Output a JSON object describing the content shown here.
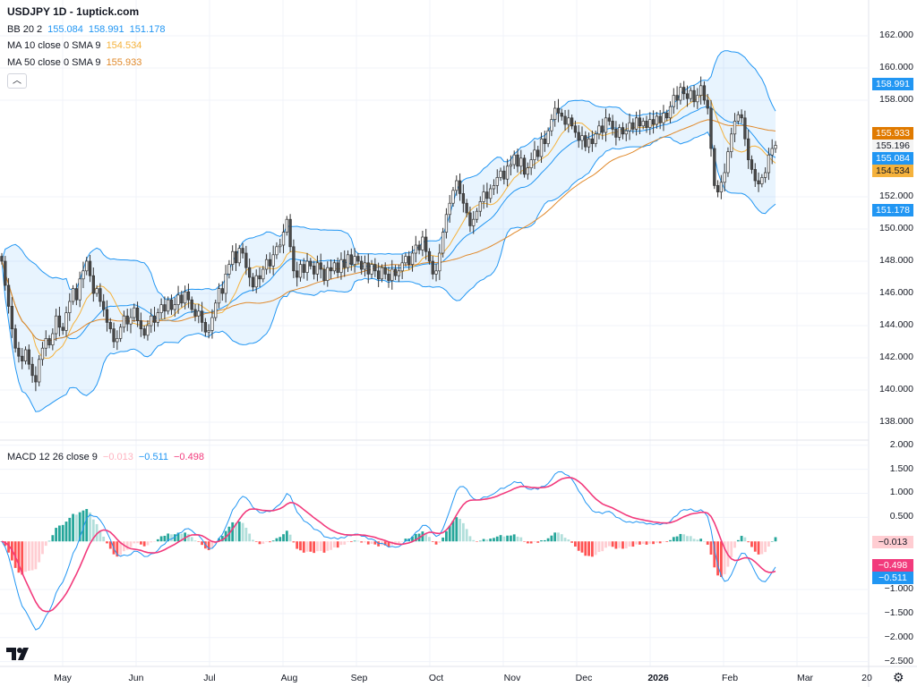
{
  "title": "USDJPY 1D - 1uptick.com",
  "legend": {
    "bb": {
      "label": "BB 20 2",
      "values": [
        "155.084",
        "158.991",
        "151.178"
      ]
    },
    "ma10": {
      "label": "MA 10 close 0 SMA 9",
      "value": "154.534"
    },
    "ma50": {
      "label": "MA 50 close 0 SMA 9",
      "value": "155.933"
    },
    "macd": {
      "label": "MACD 12 26 close 9",
      "values": [
        "−0.013",
        "−0.511",
        "−0.498"
      ]
    },
    "collapse_icon": "chevron-up-icon"
  },
  "colors": {
    "bb": "#2196f3",
    "bb_fill": "rgba(33,150,243,0.10)",
    "ma10": "#f5b23c",
    "ma50": "#e0892b",
    "macd": "#2196f3",
    "signal": "#f23a7c",
    "hist_up": "#26a69a",
    "hist_up_light": "#b2dfdb",
    "hist_dn": "#ff5252",
    "hist_dn_light": "#ffcdd2",
    "candle_down": "#4a4a4a",
    "candle_up": "#ffffff"
  },
  "chart_data": [
    {
      "type": "candlestick",
      "symbol": "USDJPY",
      "interval": "1D",
      "closes": [
        148.0,
        146.5,
        145.2,
        143.8,
        142.6,
        142.1,
        141.8,
        142.5,
        141.6,
        140.9,
        140.5,
        141.9,
        142.6,
        143.2,
        142.8,
        143.5,
        144.6,
        143.9,
        143.7,
        144.8,
        145.5,
        146.3,
        145.6,
        146.9,
        147.4,
        148.0,
        147.1,
        146.0,
        146.3,
        145.5,
        145.0,
        144.2,
        143.8,
        143.0,
        143.2,
        143.9,
        144.6,
        144.1,
        144.5,
        145.1,
        144.3,
        143.8,
        143.4,
        144.0,
        144.6,
        144.2,
        144.8,
        145.3,
        144.9,
        145.6,
        145.0,
        145.3,
        145.9,
        145.4,
        146.1,
        145.6,
        145.0,
        144.6,
        144.9,
        144.2,
        143.6,
        143.7,
        144.5,
        145.4,
        146.3,
        146.0,
        147.2,
        147.8,
        148.6,
        147.9,
        148.8,
        148.5,
        147.6,
        147.0,
        146.4,
        147.1,
        146.9,
        147.5,
        148.1,
        147.7,
        148.4,
        148.9,
        149.0,
        149.8,
        150.6,
        148.9,
        147.4,
        147.0,
        147.8,
        147.3,
        148.0,
        147.7,
        147.2,
        147.9,
        147.5,
        146.8,
        147.6,
        147.4,
        147.9,
        147.3,
        148.1,
        147.6,
        148.4,
        147.8,
        148.3,
        148.0,
        147.5,
        147.9,
        147.2,
        147.8,
        147.4,
        146.9,
        147.6,
        147.2,
        146.8,
        147.5,
        147.1,
        147.4,
        147.9,
        148.3,
        147.8,
        148.5,
        149.0,
        148.7,
        149.5,
        148.6,
        148.0,
        147.2,
        147.4,
        148.5,
        149.8,
        150.9,
        151.6,
        152.4,
        153.0,
        152.2,
        151.6,
        151.0,
        150.2,
        150.6,
        151.1,
        151.7,
        152.3,
        151.9,
        152.5,
        152.7,
        153.2,
        153.6,
        153.1,
        153.9,
        154.0,
        154.6,
        153.9,
        154.4,
        153.4,
        153.8,
        154.3,
        154.9,
        154.5,
        155.6,
        155.3,
        156.1,
        156.8,
        157.5,
        157.2,
        157.0,
        156.5,
        156.9,
        156.4,
        156.0,
        155.5,
        155.8,
        155.1,
        155.6,
        155.3,
        155.9,
        156.4,
        156.0,
        156.9,
        156.7,
        156.2,
        155.7,
        156.3,
        155.9,
        156.1,
        156.6,
        156.2,
        156.9,
        156.4,
        156.7,
        156.3,
        156.8,
        156.5,
        157.0,
        156.6,
        157.2,
        156.9,
        157.6,
        158.3,
        158.0,
        158.8,
        158.4,
        158.1,
        158.6,
        157.9,
        158.3,
        158.9,
        158.0,
        157.5,
        155.0,
        152.7,
        152.3,
        152.9,
        153.5,
        154.8,
        155.9,
        156.7,
        157.1,
        156.9,
        155.6,
        154.3,
        153.7,
        153.0,
        152.8,
        153.2,
        153.5,
        154.6,
        155.0,
        155.196
      ],
      "ylim": [
        137,
        162
      ],
      "yticks": [
        "138.000",
        "140.000",
        "142.000",
        "144.000",
        "146.000",
        "148.000",
        "150.000",
        "152.000",
        "158.000",
        "160.000",
        "162.000"
      ],
      "last_price": "155.196",
      "price_tags": [
        {
          "v": "158.991",
          "c": "#2196f3"
        },
        {
          "v": "155.933",
          "c": "#e07a00"
        },
        {
          "v": "155.196",
          "c": "#f4f4f4"
        },
        {
          "v": "155.084",
          "c": "#2196f3"
        },
        {
          "v": "154.534",
          "c": "#f5b23c"
        },
        {
          "v": "151.178",
          "c": "#2196f3"
        }
      ],
      "grid": true
    },
    {
      "type": "macd",
      "ylim": [
        -2.6,
        2.05
      ],
      "yticks": [
        "2.000",
        "1.500",
        "1.000",
        "0.500",
        "−1.000",
        "−1.500",
        "−2.000",
        "−2.500"
      ],
      "tags": [
        {
          "v": "−0.013",
          "c": "#ffcdd2"
        },
        {
          "v": "−0.498",
          "c": "#f23a7c"
        },
        {
          "v": "−0.511",
          "c": "#2196f3"
        }
      ]
    }
  ],
  "xaxis": {
    "labels": [
      "May",
      "Jun",
      "Jul",
      "Aug",
      "Sep",
      "Oct",
      "Nov",
      "Dec",
      "2026",
      "Feb",
      "Mar",
      "20"
    ]
  },
  "settings_icon": "gear-icon",
  "logo": "TV"
}
